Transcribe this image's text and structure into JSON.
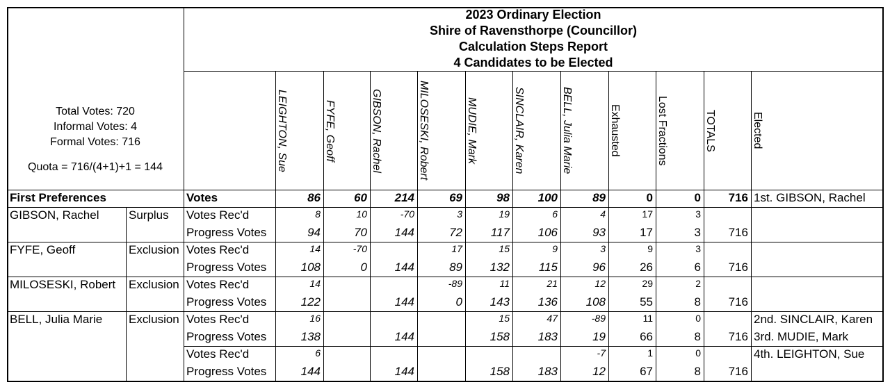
{
  "title": [
    "2023 Ordinary Election",
    "Shire of Ravensthorpe (Councillor)",
    "Calculation Steps Report",
    "4 Candidates to be Elected"
  ],
  "summary": {
    "total": "Total Votes: 720",
    "informal": "Informal Votes: 4",
    "formal": "Formal Votes: 716",
    "quota": "Quota = 716/(4+1)+1 = 144"
  },
  "columns": [
    "LEIGHTON, Sue",
    "FYFE, Geoff",
    "GIBSON, Rachel",
    "MILOSESKI, Robert",
    "MUDIE, Mark",
    "SINCLAIR, Karen",
    "BELL, Julia Marie",
    "Exhausted",
    "Lost Fractions",
    "TOTALS"
  ],
  "elected_header": "Elected",
  "first_preferences": {
    "label": "First Preferences",
    "row_label": "Votes",
    "values": [
      "86",
      "60",
      "214",
      "69",
      "98",
      "100",
      "89",
      "0",
      "0",
      "716"
    ],
    "elected": "1st. GIBSON, Rachel"
  },
  "row_labels": {
    "recd": "Votes Rec'd",
    "progress": "Progress Votes"
  },
  "rounds": [
    {
      "candidate": "GIBSON, Rachel",
      "type": "Surplus",
      "recd": [
        "8",
        "10",
        "-70",
        "3",
        "19",
        "6",
        "4",
        "17",
        "3",
        ""
      ],
      "progress": [
        "94",
        "70",
        "144",
        "72",
        "117",
        "106",
        "93",
        "17",
        "3",
        "716"
      ],
      "elected": [
        "",
        ""
      ]
    },
    {
      "candidate": "FYFE, Geoff",
      "type": "Exclusion",
      "recd": [
        "14",
        "-70",
        "",
        "17",
        "15",
        "9",
        "3",
        "9",
        "3",
        ""
      ],
      "progress": [
        "108",
        "0",
        "144",
        "89",
        "132",
        "115",
        "96",
        "26",
        "6",
        "716"
      ],
      "elected": [
        "",
        ""
      ]
    },
    {
      "candidate": "MILOSESKI, Robert",
      "type": "Exclusion",
      "recd": [
        "14",
        "",
        "",
        "-89",
        "11",
        "21",
        "12",
        "29",
        "2",
        ""
      ],
      "progress": [
        "122",
        "",
        "144",
        "0",
        "143",
        "136",
        "108",
        "55",
        "8",
        "716"
      ],
      "elected": [
        "",
        ""
      ]
    },
    {
      "candidate": "BELL, Julia Marie",
      "type": "Exclusion",
      "recd": [
        "16",
        "",
        "",
        "",
        "15",
        "47",
        "-89",
        "11",
        "0",
        ""
      ],
      "progress": [
        "138",
        "",
        "144",
        "",
        "158",
        "183",
        "19",
        "66",
        "8",
        "716"
      ],
      "elected": [
        "2nd. SINCLAIR, Karen",
        "3rd. MUDIE, Mark"
      ]
    },
    {
      "candidate": "",
      "type": "",
      "recd": [
        "6",
        "",
        "",
        "",
        "",
        "",
        "-7",
        "1",
        "0",
        ""
      ],
      "progress": [
        "144",
        "",
        "144",
        "",
        "158",
        "183",
        "12",
        "67",
        "8",
        "716"
      ],
      "elected": [
        "4th. LEIGHTON, Sue",
        ""
      ]
    }
  ]
}
